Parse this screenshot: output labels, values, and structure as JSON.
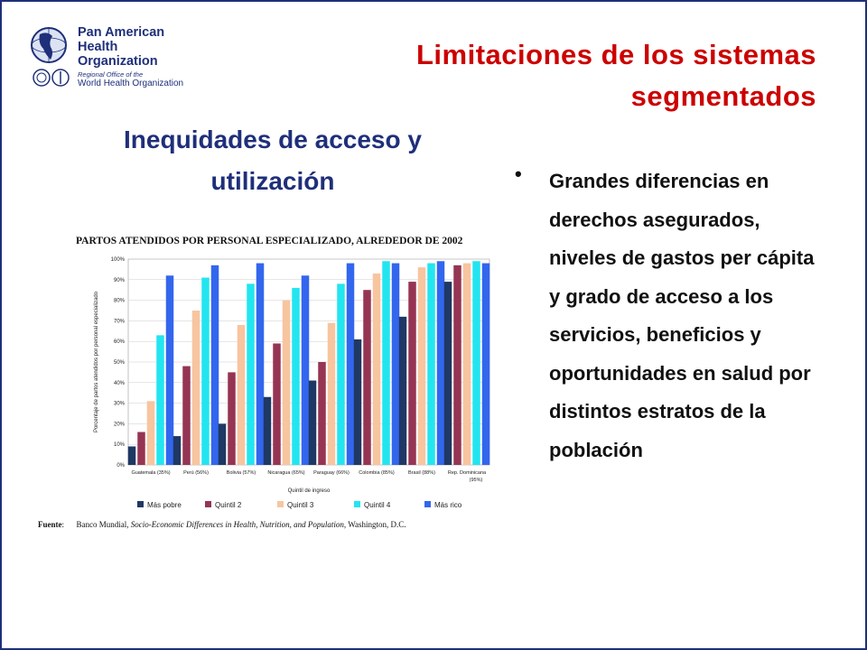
{
  "logo": {
    "line1": "Pan American",
    "line2": "Health",
    "line3": "Organization",
    "sub1": "Regional Office of the",
    "sub2": "World Health Organization"
  },
  "title_line1": "Limitaciones de los sistemas",
  "title_line2": "segmentados",
  "subtitle_line1": "Inequidades de acceso y",
  "subtitle_line2": "utilización",
  "bullet": "Grandes diferencias en derechos asegurados, niveles de gastos per cápita y grado de acceso a los servicios, beneficios y oportunidades en salud por distintos estratos de la población",
  "fuente_label": "Fuente",
  "fuente_text": "Banco Mundial, ",
  "fuente_italic": "Socio-Economic Differences in Health, Nutrition, and Population",
  "fuente_end": ", Washington, D.C.",
  "colors": {
    "title": "#cc0000",
    "subtitle": "#1f2f7a"
  },
  "chart_data": {
    "type": "bar",
    "title": "PARTOS ATENDIDOS POR PERSONAL ESPECIALIZADO, ALREDEDOR DE 2002",
    "xlabel": "Quintil de ingreso",
    "ylabel": "Porcentaje de partos atendidos por personal especializado",
    "ylim": [
      0,
      100
    ],
    "yticks": [
      "0%",
      "10%",
      "20%",
      "30%",
      "40%",
      "50%",
      "60%",
      "70%",
      "80%",
      "90%",
      "100%"
    ],
    "categories": [
      "Guatemala (35%)",
      "Perú (56%)",
      "Bolivia (57%)",
      "Nicaragua (65%)",
      "Paraguay (66%)",
      "Colombia (85%)",
      "Brasil (88%)",
      "Rep. Dominicana (95%)"
    ],
    "series": [
      {
        "name": "Más pobre",
        "color": "#1f3864",
        "values": [
          9,
          14,
          20,
          33,
          41,
          61,
          72,
          89
        ]
      },
      {
        "name": "Quintil 2",
        "color": "#953553",
        "values": [
          16,
          48,
          45,
          59,
          50,
          85,
          89,
          97
        ]
      },
      {
        "name": "Quintil 3",
        "color": "#f7c59f",
        "values": [
          31,
          75,
          68,
          80,
          69,
          93,
          96,
          98
        ]
      },
      {
        "name": "Quintil 4",
        "color": "#22e5f0",
        "values": [
          63,
          91,
          88,
          86,
          88,
          99,
          98,
          99
        ]
      },
      {
        "name": "Más rico",
        "color": "#3366ee",
        "values": [
          92,
          97,
          98,
          92,
          98,
          98,
          99,
          98
        ]
      }
    ],
    "legend": "bottom"
  }
}
